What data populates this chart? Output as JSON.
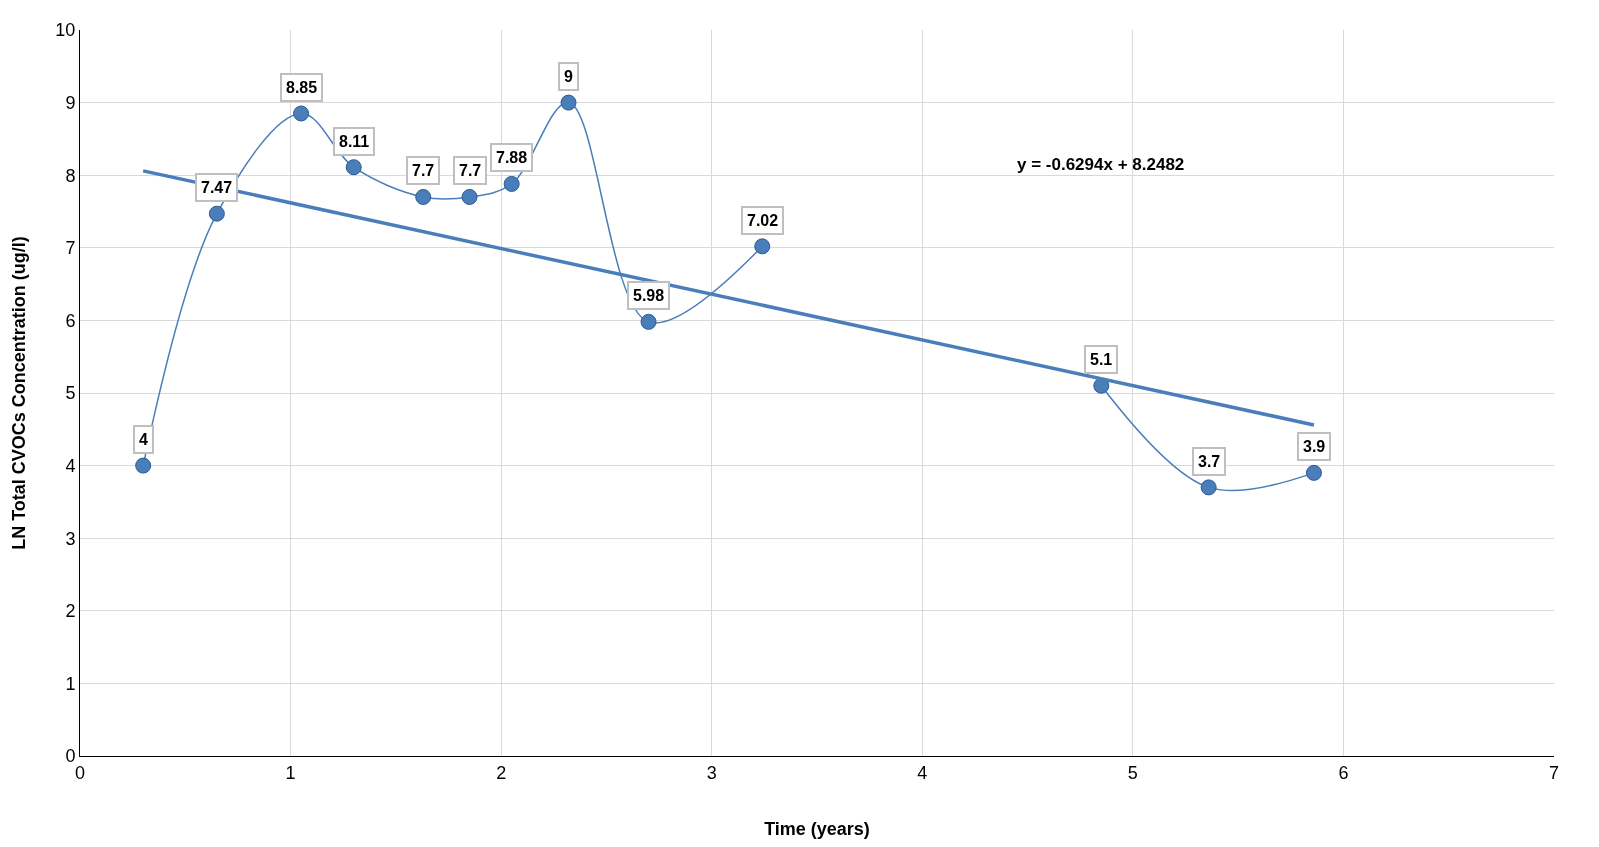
{
  "chart_data": {
    "type": "line",
    "xlabel": "Time (years)",
    "ylabel": "LN Total CVOCs Concentration (ug/l)",
    "xlim": [
      0,
      7
    ],
    "xticks": [
      0,
      1,
      2,
      3,
      4,
      5,
      6,
      7
    ],
    "ylim": [
      0,
      10
    ],
    "yticks": [
      0,
      1,
      2,
      3,
      4,
      5,
      6,
      7,
      8,
      9,
      10
    ],
    "grid": true,
    "series": [
      {
        "color": "#4a7ebb",
        "marker": "circle",
        "line_style": "solid",
        "x": [
          0.3,
          0.65,
          1.05,
          1.3,
          1.63,
          1.85,
          2.05,
          2.32,
          2.7,
          3.24,
          4.0,
          4.85,
          5.36,
          5.86
        ],
        "values": [
          4,
          7.47,
          8.85,
          8.11,
          7.7,
          7.7,
          7.88,
          9,
          5.98,
          7.02,
          null,
          5.1,
          3.7,
          3.9
        ],
        "value_labels": [
          "4",
          "7.47",
          "8.85",
          "8.11",
          "7.7",
          "7.7",
          "7.88",
          "9",
          "5.98",
          "7.02",
          null,
          "5.1",
          "3.7",
          "3.9"
        ]
      },
      {
        "color": "#4a7ebb",
        "marker": "none",
        "line_style": "solid",
        "x": [
          0.3,
          5.86
        ],
        "values": [
          8.06,
          4.56
        ]
      }
    ],
    "annotations": [
      "y = -0.6294x + 8.2482"
    ]
  }
}
